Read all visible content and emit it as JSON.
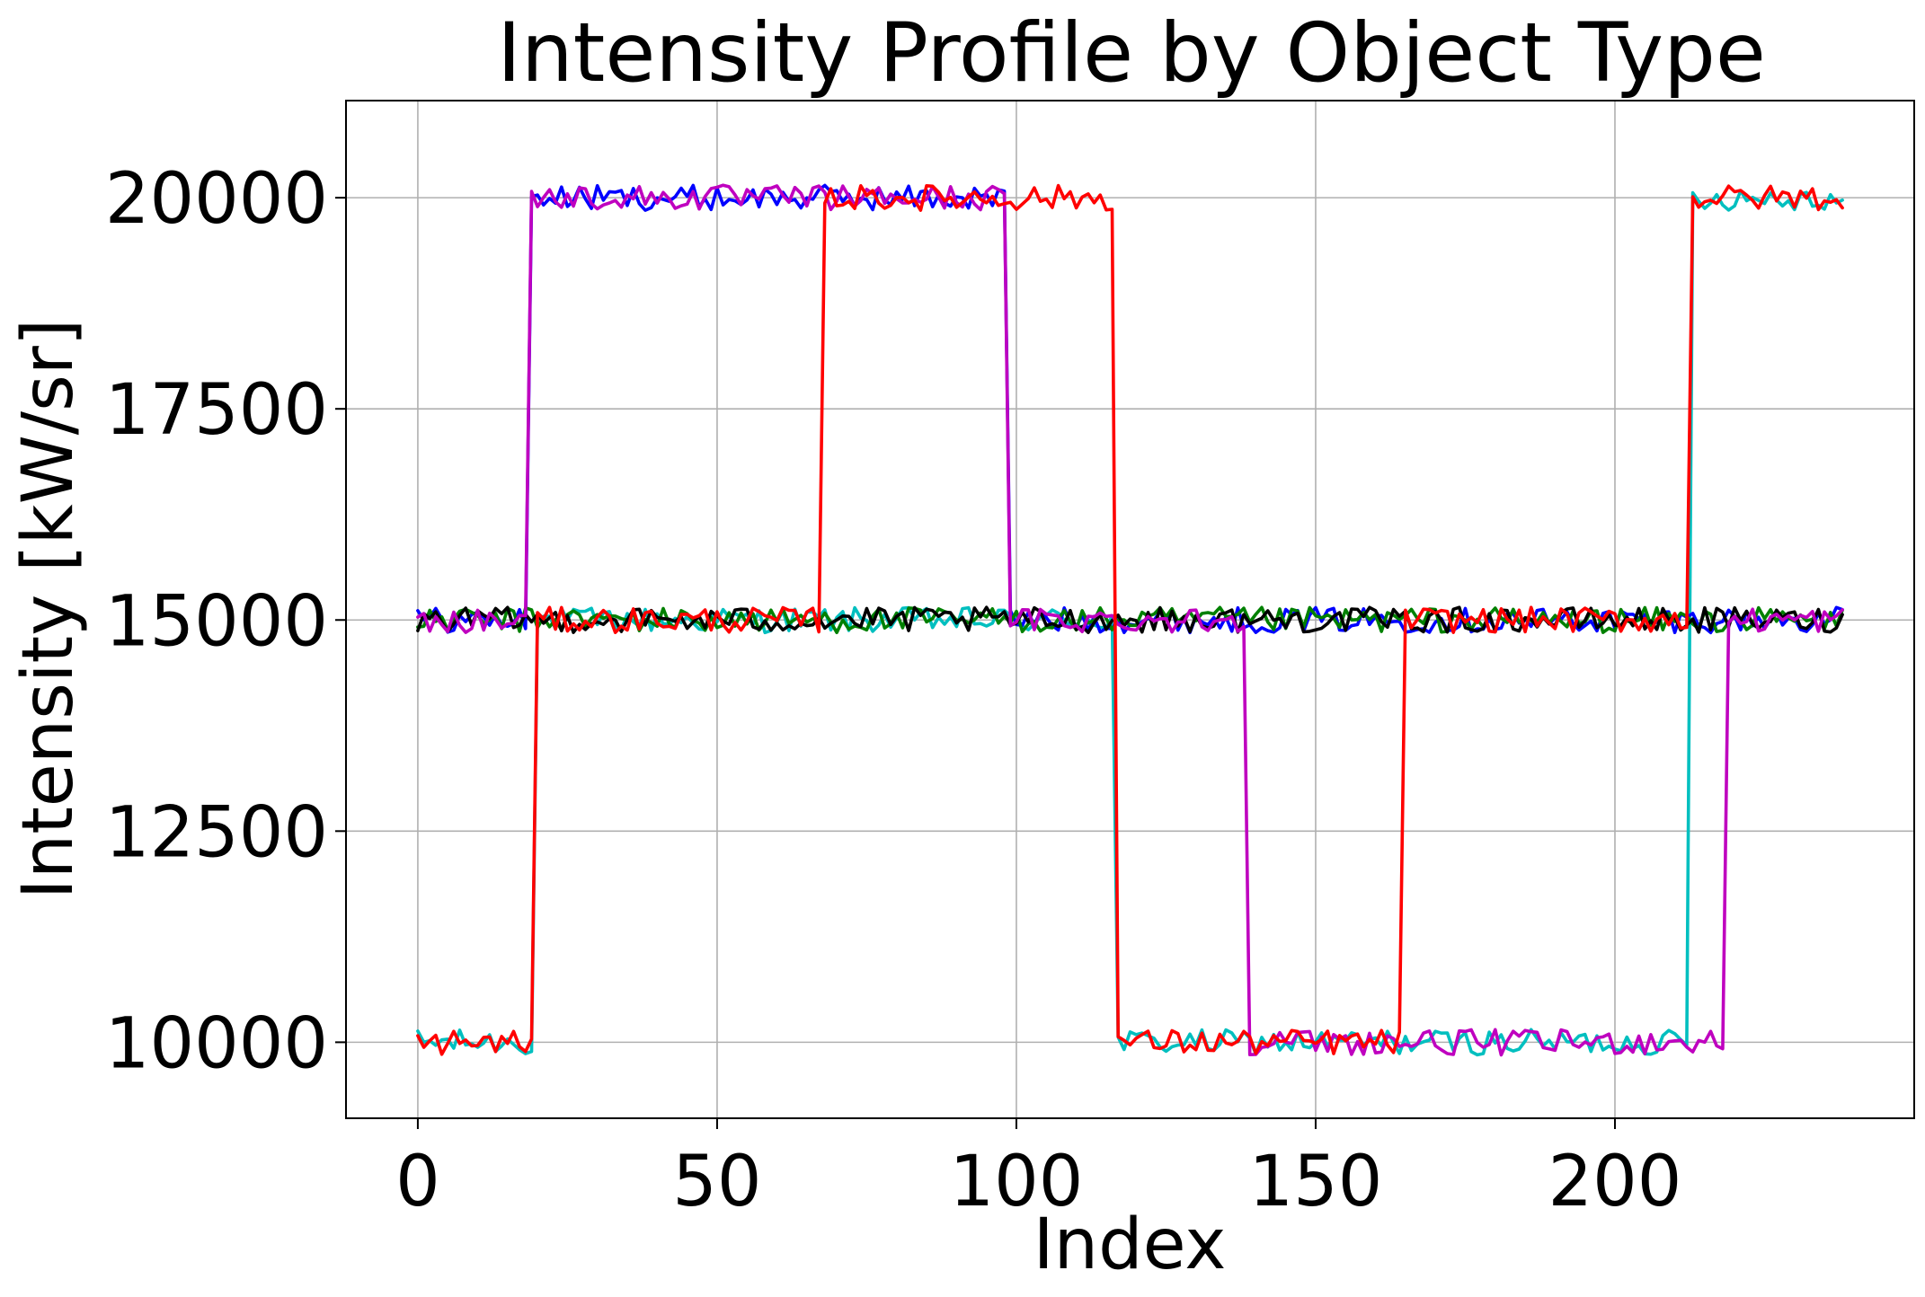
{
  "chart_data": {
    "type": "line",
    "title": "Intensity Profile by Object Type",
    "xlabel": "Index",
    "ylabel": "Intensity [kW/sr]",
    "xlim": [
      -12,
      250
    ],
    "ylim": [
      9100,
      21150
    ],
    "xticks": [
      0,
      50,
      100,
      150,
      200
    ],
    "yticks": [
      10000,
      12500,
      15000,
      17500,
      20000
    ],
    "grid": true,
    "noise_amplitude": 150,
    "series": [
      {
        "color": "#00bfbf",
        "n": 239,
        "segments": [
          [
            0,
            19,
            10000
          ],
          [
            20,
            116,
            15000
          ],
          [
            117,
            212,
            10000
          ],
          [
            213,
            238,
            20000
          ]
        ]
      },
      {
        "color": "#0000ff",
        "n": 239,
        "segments": [
          [
            0,
            18,
            15000
          ],
          [
            19,
            98,
            20000
          ],
          [
            99,
            219,
            15000
          ],
          [
            220,
            238,
            15000
          ]
        ]
      },
      {
        "color": "#008000",
        "n": 239,
        "segments": [
          [
            0,
            238,
            15000
          ]
        ]
      },
      {
        "color": "#000000",
        "n": 239,
        "segments": [
          [
            0,
            238,
            15000
          ]
        ]
      },
      {
        "color": "#bf00bf",
        "n": 239,
        "segments": [
          [
            0,
            18,
            15000
          ],
          [
            19,
            98,
            20000
          ],
          [
            99,
            138,
            15000
          ],
          [
            139,
            218,
            10000
          ],
          [
            219,
            238,
            15000
          ]
        ]
      },
      {
        "color": "#ff0000",
        "n": 239,
        "segments": [
          [
            0,
            19,
            10000
          ],
          [
            20,
            67,
            15000
          ],
          [
            68,
            116,
            20000
          ],
          [
            117,
            164,
            10000
          ],
          [
            165,
            212,
            15000
          ],
          [
            213,
            238,
            20000
          ]
        ]
      }
    ]
  }
}
